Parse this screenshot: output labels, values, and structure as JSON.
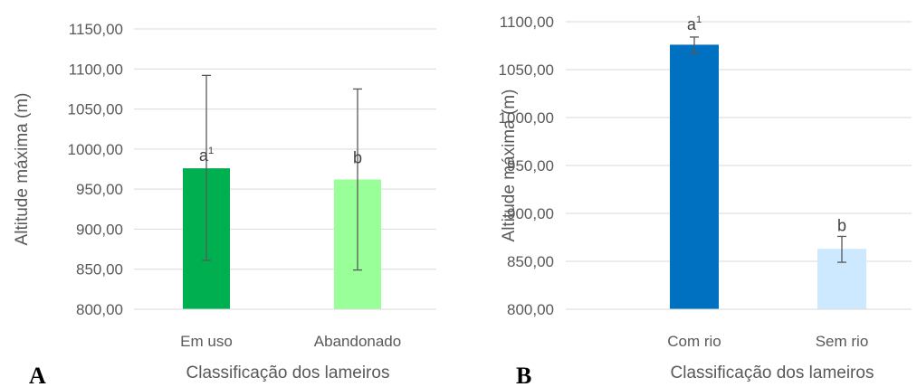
{
  "chart_data": [
    {
      "type": "bar",
      "panel_label": "A",
      "xlabel": "Classificação dos lameiros",
      "ylabel": "Altitude máxima (m)",
      "ylim": [
        800,
        1150
      ],
      "yticks": [
        "800,00",
        "850,00",
        "900,00",
        "950,00",
        "1000,00",
        "1050,00",
        "1100,00",
        "1150,00"
      ],
      "grid": true,
      "categories": [
        "Em uso",
        "Abandonado"
      ],
      "values": [
        976,
        962
      ],
      "error_low": [
        861,
        849
      ],
      "error_high": [
        1092,
        1075
      ],
      "letters": [
        {
          "main": "a",
          "sup": "1"
        },
        {
          "main": "b",
          "sup": ""
        }
      ],
      "colors": [
        "#00b050",
        "#99ff99"
      ]
    },
    {
      "type": "bar",
      "panel_label": "B",
      "xlabel": "Classificação dos lameiros",
      "ylabel": "Altitude máxima (m)",
      "ylim": [
        800,
        1100
      ],
      "yticks": [
        "800,00",
        "850,00",
        "900,00",
        "950,00",
        "1000,00",
        "1050,00",
        "1100,00"
      ],
      "grid": true,
      "categories": [
        "Com rio",
        "Sem rio"
      ],
      "values": [
        1076,
        863
      ],
      "error_low": [
        1067,
        849
      ],
      "error_high": [
        1084,
        876
      ],
      "letters": [
        {
          "main": "a",
          "sup": "1"
        },
        {
          "main": "b",
          "sup": ""
        }
      ],
      "colors": [
        "#0070c0",
        "#cce9ff"
      ]
    }
  ]
}
